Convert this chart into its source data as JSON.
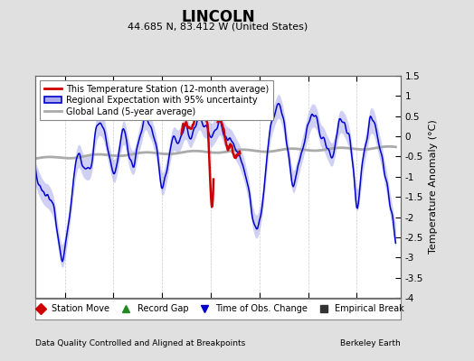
{
  "title": "LINCOLN",
  "subtitle": "44.685 N, 83.412 W (United States)",
  "ylabel": "Temperature Anomaly (°C)",
  "xlabel_note": "Data Quality Controlled and Aligned at Breakpoints",
  "credit": "Berkeley Earth",
  "xlim": [
    1882.0,
    1919.5
  ],
  "ylim": [
    -4,
    1.5
  ],
  "yticks": [
    -4,
    -3.5,
    -3,
    -2.5,
    -2,
    -1.5,
    -1,
    -0.5,
    0,
    0.5,
    1,
    1.5
  ],
  "xticks": [
    1885,
    1890,
    1895,
    1900,
    1905,
    1910,
    1915
  ],
  "bg_color": "#e0e0e0",
  "plot_bg_color": "#ffffff",
  "blue_line_color": "#0000cc",
  "red_line_color": "#cc0000",
  "gray_line_color": "#aaaaaa",
  "blue_fill_color": "#aaaaee",
  "legend1_labels": [
    "This Temperature Station (12-month average)",
    "Regional Expectation with 95% uncertainty",
    "Global Land (5-year average)"
  ],
  "legend2_labels": [
    "Station Move",
    "Record Gap",
    "Time of Obs. Change",
    "Empirical Break"
  ],
  "legend2_colors": [
    "#cc0000",
    "#228822",
    "#0000cc",
    "#333333"
  ],
  "legend2_markers": [
    "D",
    "^",
    "v",
    "s"
  ]
}
